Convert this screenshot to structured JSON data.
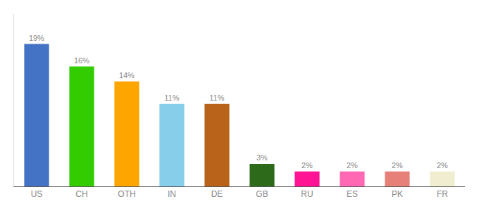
{
  "chart_data": {
    "type": "bar",
    "categories": [
      "US",
      "CH",
      "OTH",
      "IN",
      "DE",
      "GB",
      "RU",
      "ES",
      "PK",
      "FR"
    ],
    "values": [
      19,
      16,
      14,
      11,
      11,
      3,
      2,
      2,
      2,
      2
    ],
    "value_labels": [
      "19%",
      "16%",
      "14%",
      "11%",
      "11%",
      "3%",
      "2%",
      "2%",
      "2%",
      "2%"
    ],
    "colors": [
      "#4472C4",
      "#33CC00",
      "#FFA500",
      "#87CEEB",
      "#B8621A",
      "#2D6B1B",
      "#FF1493",
      "#FF69B4",
      "#E8807A",
      "#F0EDD0"
    ],
    "ylim": [
      0,
      23
    ],
    "data_labels": true,
    "tick_labels": "x",
    "grid": false
  }
}
